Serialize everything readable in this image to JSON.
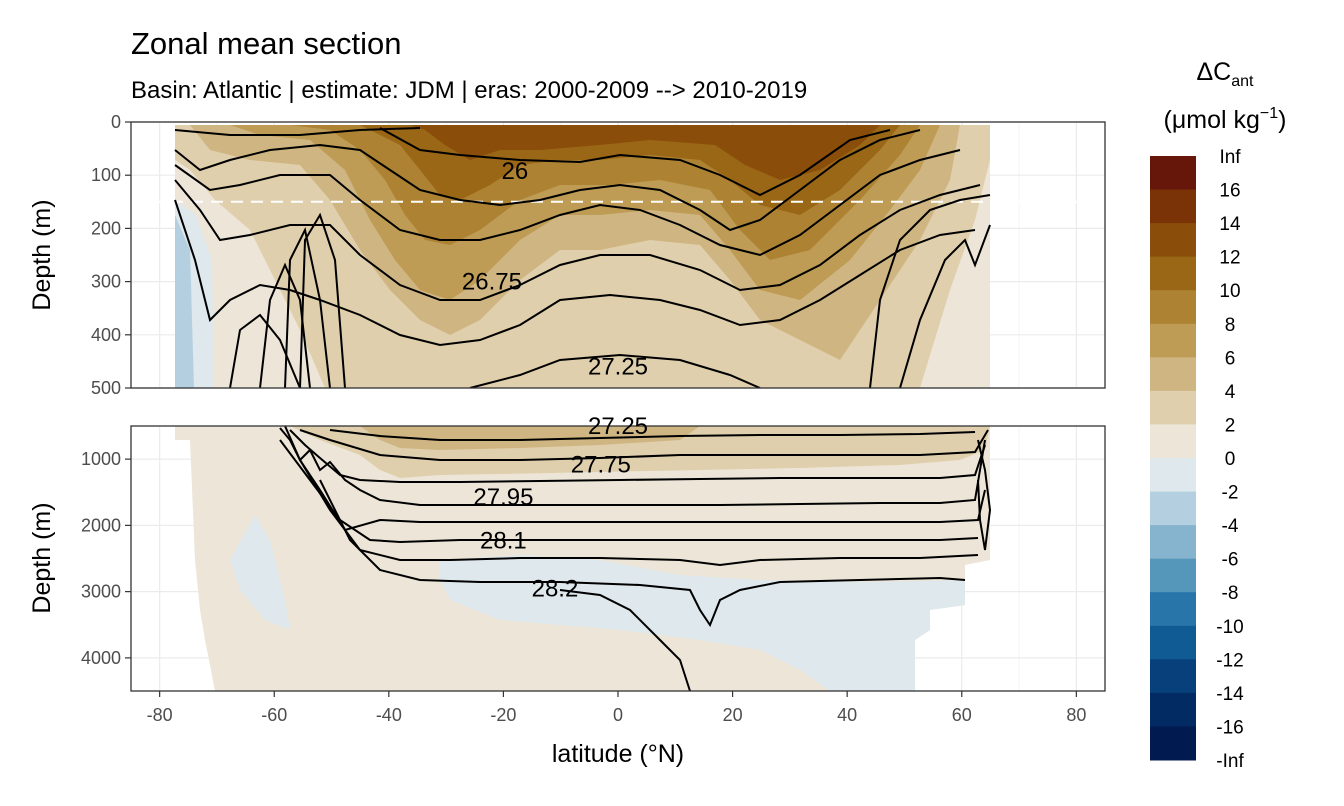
{
  "chart_data": {
    "type": "heatmap",
    "title": "Zonal mean section",
    "subtitle": "Basin: Atlantic | estimate: JDM  | eras: 2000-2009 --> 2010-2019",
    "xlabel": "latitude (°N)",
    "ylabel": "Depth (m)",
    "xlim": [
      -85,
      85
    ],
    "x_ticks": [
      "-80",
      "-60",
      "-40",
      "-20",
      "0",
      "20",
      "40",
      "60",
      "80"
    ],
    "grid": true,
    "panels": [
      {
        "name": "upper",
        "ylim": [
          0,
          500
        ],
        "y_ticks": [
          "0",
          "100",
          "200",
          "300",
          "400",
          "500"
        ],
        "reference_line_depth": 150
      },
      {
        "name": "lower",
        "ylim": [
          500,
          4500
        ],
        "y_ticks": [
          "1000",
          "2000",
          "3000",
          "4000"
        ]
      }
    ],
    "isopycnal_labels": [
      {
        "text": "26",
        "lat": -18,
        "depth": 92,
        "panel": "upper"
      },
      {
        "text": "26.75",
        "lat": -22,
        "depth": 300,
        "panel": "upper"
      },
      {
        "text": "27.25",
        "lat": 0,
        "depth": 460,
        "panel": "upper"
      },
      {
        "text": "27.25",
        "lat": 0,
        "depth": 500,
        "panel": "lower"
      },
      {
        "text": "27.75",
        "lat": -3,
        "depth": 1080,
        "panel": "lower"
      },
      {
        "text": "27.95",
        "lat": -20,
        "depth": 1570,
        "panel": "lower"
      },
      {
        "text": "28.1",
        "lat": -20,
        "depth": 2230,
        "panel": "lower"
      },
      {
        "text": "28.2",
        "lat": -11,
        "depth": 2950,
        "panel": "lower"
      }
    ],
    "legend": {
      "position": "right",
      "title_main": "ΔC",
      "title_sub": "ant",
      "unit_main": "(μmol kg",
      "unit_sup": "−1",
      "unit_close": ")",
      "labels": [
        "Inf",
        "16",
        "14",
        "12",
        "10",
        "8",
        "6",
        "4",
        "2",
        "0",
        "-2",
        "-4",
        "-6",
        "-8",
        "-10",
        "-12",
        "-14",
        "-16",
        "-Inf"
      ],
      "colors": [
        "#67170a",
        "#7a3306",
        "#8a4e0a",
        "#9a6716",
        "#ad8333",
        "#be9c55",
        "#cfb582",
        "#e0cfad",
        "#ede6d8",
        "#dfe8ec",
        "#b4d0e0",
        "#86b3cd",
        "#5596bb",
        "#2876a9",
        "#115b94",
        "#07407a",
        "#032b63",
        "#011a4f"
      ]
    }
  }
}
